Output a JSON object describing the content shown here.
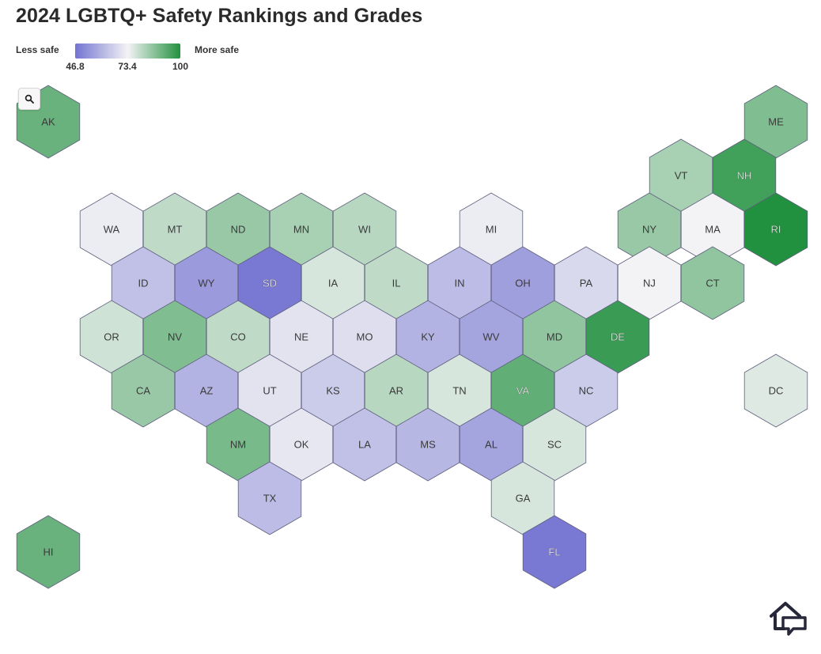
{
  "title": "2024 LGBTQ+ Safety Rankings and Grades",
  "legend": {
    "less_label": "Less safe",
    "more_label": "More safe",
    "ticks": [
      "46.8",
      "73.4",
      "100"
    ],
    "min": 46.8,
    "mid": 73.4,
    "max": 100,
    "colors": {
      "low": "#7373d1",
      "mid": "#f3f3f5",
      "high": "#22913f"
    }
  },
  "zoom_icon": "search-icon",
  "logo_icon": "house-chat-icon",
  "states": [
    {
      "abbr": "AK",
      "score": 91,
      "row": 0,
      "col": 0
    },
    {
      "abbr": "ME",
      "score": 88,
      "row": 0,
      "col": 11.5
    },
    {
      "abbr": "VT",
      "score": 83,
      "row": 1,
      "col": 10
    },
    {
      "abbr": "NH",
      "score": 96,
      "row": 1,
      "col": 11
    },
    {
      "abbr": "WA",
      "score": 72,
      "row": 2,
      "col": 1
    },
    {
      "abbr": "MT",
      "score": 80,
      "row": 2,
      "col": 2
    },
    {
      "abbr": "ND",
      "score": 85,
      "row": 2,
      "col": 3
    },
    {
      "abbr": "MN",
      "score": 83,
      "row": 2,
      "col": 4
    },
    {
      "abbr": "WI",
      "score": 81,
      "row": 2,
      "col": 5
    },
    {
      "abbr": "MI",
      "score": 72,
      "row": 2,
      "col": 7
    },
    {
      "abbr": "NY",
      "score": 85,
      "row": 2,
      "col": 9.5
    },
    {
      "abbr": "MA",
      "score": 73.4,
      "row": 2,
      "col": 10.5
    },
    {
      "abbr": "RI",
      "score": 100,
      "row": 2,
      "col": 11.5
    },
    {
      "abbr": "ID",
      "score": 63,
      "row": 3,
      "col": 1.5
    },
    {
      "abbr": "WY",
      "score": 55,
      "row": 3,
      "col": 2.5
    },
    {
      "abbr": "SD",
      "score": 48,
      "row": 3,
      "col": 3.5
    },
    {
      "abbr": "IA",
      "score": 77,
      "row": 3,
      "col": 4.5
    },
    {
      "abbr": "IL",
      "score": 80,
      "row": 3,
      "col": 5.5
    },
    {
      "abbr": "IN",
      "score": 62,
      "row": 3,
      "col": 6.5
    },
    {
      "abbr": "OH",
      "score": 56,
      "row": 3,
      "col": 7.5
    },
    {
      "abbr": "PA",
      "score": 68,
      "row": 3,
      "col": 8.5
    },
    {
      "abbr": "NJ",
      "score": 73.4,
      "row": 3,
      "col": 9.5
    },
    {
      "abbr": "CT",
      "score": 86,
      "row": 3,
      "col": 10.5
    },
    {
      "abbr": "OR",
      "score": 78,
      "row": 4,
      "col": 1
    },
    {
      "abbr": "NV",
      "score": 88,
      "row": 4,
      "col": 2
    },
    {
      "abbr": "CO",
      "score": 80,
      "row": 4,
      "col": 3
    },
    {
      "abbr": "NE",
      "score": 70,
      "row": 4,
      "col": 4
    },
    {
      "abbr": "MO",
      "score": 69,
      "row": 4,
      "col": 5
    },
    {
      "abbr": "KY",
      "score": 60,
      "row": 4,
      "col": 6
    },
    {
      "abbr": "WV",
      "score": 57,
      "row": 4,
      "col": 7
    },
    {
      "abbr": "MD",
      "score": 86,
      "row": 4,
      "col": 8
    },
    {
      "abbr": "DE",
      "score": 97,
      "row": 4,
      "col": 9
    },
    {
      "abbr": "CA",
      "score": 85,
      "row": 5,
      "col": 1.5
    },
    {
      "abbr": "AZ",
      "score": 60,
      "row": 5,
      "col": 2.5
    },
    {
      "abbr": "UT",
      "score": 70,
      "row": 5,
      "col": 3.5
    },
    {
      "abbr": "KS",
      "score": 65,
      "row": 5,
      "col": 4.5
    },
    {
      "abbr": "AR",
      "score": 81,
      "row": 5,
      "col": 5.5
    },
    {
      "abbr": "TN",
      "score": 77,
      "row": 5,
      "col": 6.5
    },
    {
      "abbr": "VA",
      "score": 92,
      "row": 5,
      "col": 7.5
    },
    {
      "abbr": "NC",
      "score": 65,
      "row": 5,
      "col": 8.5
    },
    {
      "abbr": "DC",
      "score": 76,
      "row": 5,
      "col": 11.5
    },
    {
      "abbr": "NM",
      "score": 89,
      "row": 6,
      "col": 3
    },
    {
      "abbr": "OK",
      "score": 71,
      "row": 6,
      "col": 4
    },
    {
      "abbr": "LA",
      "score": 63,
      "row": 6,
      "col": 5
    },
    {
      "abbr": "MS",
      "score": 61,
      "row": 6,
      "col": 6
    },
    {
      "abbr": "AL",
      "score": 57,
      "row": 6,
      "col": 7
    },
    {
      "abbr": "SC",
      "score": 77,
      "row": 6,
      "col": 8
    },
    {
      "abbr": "TX",
      "score": 62,
      "row": 7,
      "col": 3.5
    },
    {
      "abbr": "GA",
      "score": 77,
      "row": 7,
      "col": 7.5
    },
    {
      "abbr": "HI",
      "score": 91,
      "row": 8,
      "col": 0
    },
    {
      "abbr": "FL",
      "score": 48,
      "row": 8,
      "col": 8
    }
  ]
}
